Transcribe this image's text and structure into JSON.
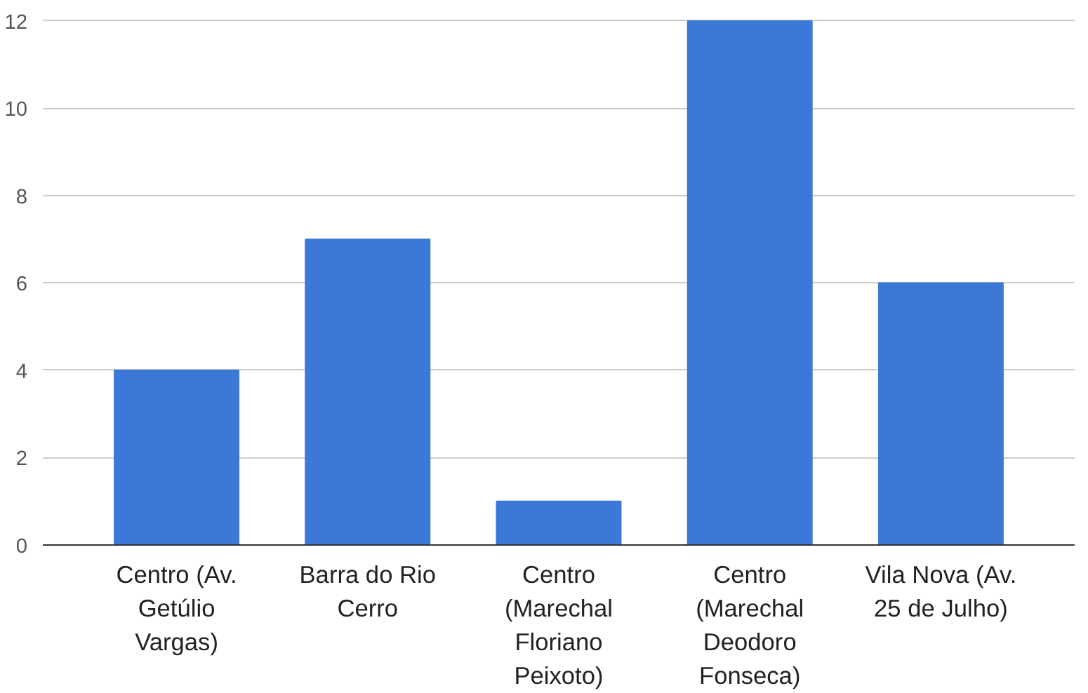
{
  "chart_data": {
    "type": "bar",
    "categories": [
      "Centro (Av. Getúlio Vargas)",
      "Barra do Rio Cerro",
      "Centro (Marechal Floriano Peixoto)",
      "Centro (Marechal Deodoro Fonseca)",
      "Vila Nova (Av. 25 de Julho)"
    ],
    "values": [
      4,
      7,
      1,
      12,
      6
    ],
    "color": "#3c78d8",
    "ylim": [
      0,
      12
    ],
    "yticks": [
      0,
      2,
      4,
      6,
      8,
      10,
      12
    ],
    "grid": "y"
  }
}
